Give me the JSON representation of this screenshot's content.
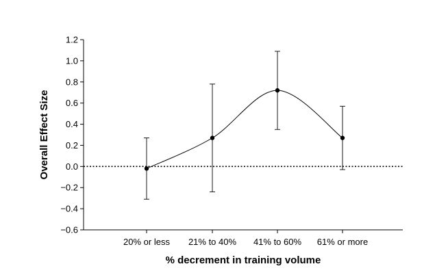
{
  "chart_data": {
    "type": "line",
    "title": "",
    "xlabel": "% decrement in training volume",
    "ylabel": "Overall Effect Size",
    "categories": [
      "20% or less",
      "21% to 40%",
      "41% to 60%",
      "61% or more"
    ],
    "series": [
      {
        "values": [
          -0.02,
          0.27,
          0.72,
          0.27
        ],
        "error_low": [
          -0.31,
          -0.24,
          0.35,
          -0.03
        ],
        "error_high": [
          0.27,
          0.78,
          1.09,
          0.57
        ]
      }
    ],
    "ylim": [
      -0.6,
      1.2
    ],
    "yticks": [
      -0.6,
      -0.4,
      -0.2,
      0.0,
      0.2,
      0.4,
      0.6,
      0.8,
      1.0,
      1.2
    ],
    "ytick_labels": [
      "−0.6",
      "−0.4",
      "−0.2",
      "0.0",
      "0.2",
      "0.4",
      "0.6",
      "0.8",
      "1.0",
      "1.2"
    ],
    "reference_line": {
      "y": 0.0,
      "style": "dotted"
    },
    "curve": "smooth",
    "grid": false,
    "legend": "none",
    "colors": {
      "line": "#000000",
      "axis": "#000000",
      "error_bar": "#000000"
    }
  }
}
